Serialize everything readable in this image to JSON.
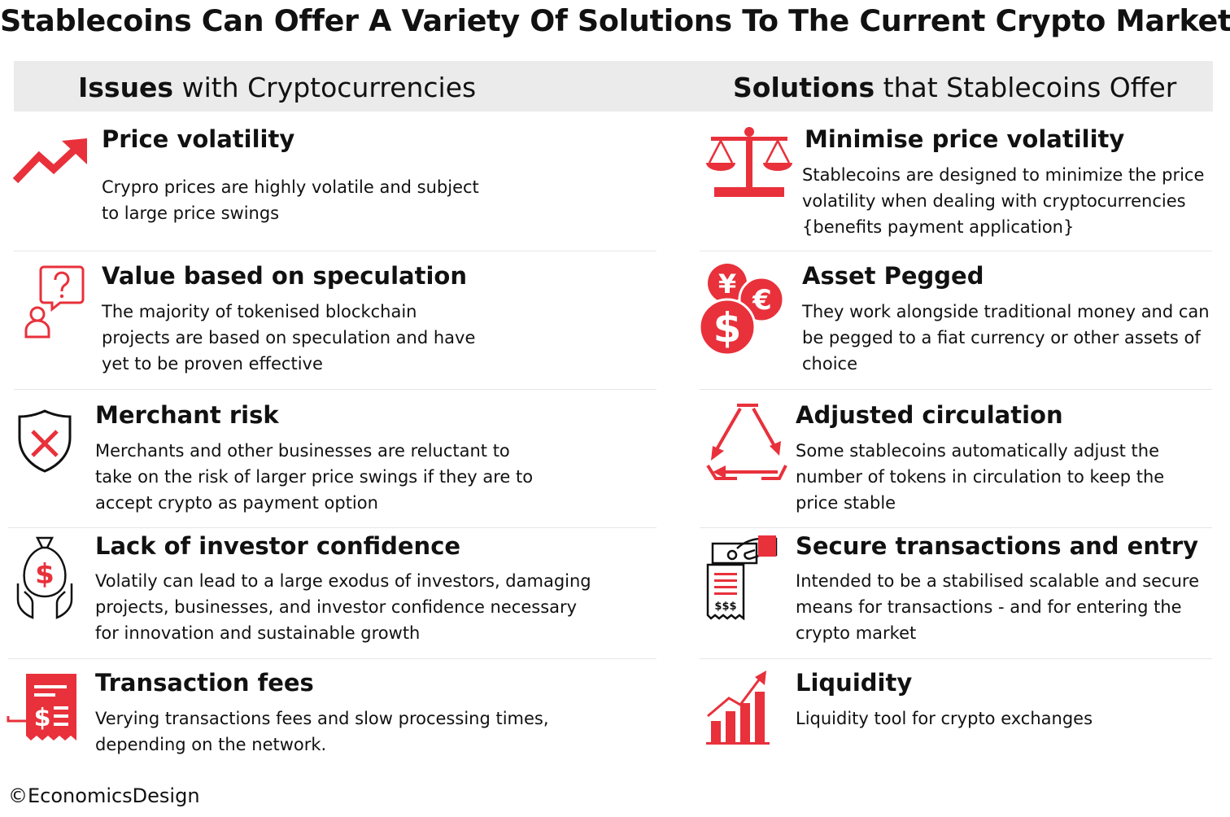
{
  "title": "Stablecoins Can Offer A Variety Of Solutions To The Current Crypto Market",
  "left_header": {
    "bold": "Issues",
    "rest": " with Cryptocurrencies"
  },
  "right_header": {
    "bold": "Solutions",
    "rest": " that Stablecoins Offer"
  },
  "accent_color": "#e8313b",
  "issues": [
    {
      "icon": "trend-up-arrow-icon",
      "title": "Price volatility",
      "desc": "Crypro prices are highly volatile and subject\nto large price swings"
    },
    {
      "icon": "question-person-icon",
      "title": "Value based on speculation",
      "desc": "The majority of tokenised blockchain\nprojects are based on speculation and have\nyet to be proven effective"
    },
    {
      "icon": "shield-x-icon",
      "title": "Merchant risk",
      "desc": "Merchants and other businesses are reluctant to\ntake on the risk of larger price swings if they are to\naccept crypto as payment option"
    },
    {
      "icon": "money-bag-hands-icon",
      "title": "Lack of investor confidence",
      "desc": "Volatily can lead to a large exodus of investors, damaging\nprojects, businesses, and investor confidence necessary\nfor innovation and sustainable growth"
    },
    {
      "icon": "receipt-dollar-icon",
      "title": "Transaction fees",
      "desc": "Verying transactions fees and slow processing times,\ndepending on the network."
    }
  ],
  "solutions": [
    {
      "icon": "balance-scale-icon",
      "title": "Minimise price volatility",
      "desc": "Stablecoins are designed to minimize the price\nvolatility when dealing with cryptocurrencies\n{benefits payment application}"
    },
    {
      "icon": "currency-coins-icon",
      "title": "Asset Pegged",
      "desc": "They work alongside traditional money and can\nbe pegged to a fiat currency or other assets of\nchoice",
      "coin_symbols": [
        "¥",
        "€",
        "$"
      ]
    },
    {
      "icon": "recycle-arrows-icon",
      "title": "Adjusted circulation",
      "desc": "Some stablecoins automatically adjust the\nnumber of tokens in circulation to keep the\nprice stable"
    },
    {
      "icon": "payment-receipt-icon",
      "title": "Secure transactions and entry",
      "desc": "Intended to be a stabilised scalable and secure\nmeans for transactions - and for entering the\ncrypto market",
      "receipt_text": "$$$"
    },
    {
      "icon": "bar-chart-growth-icon",
      "title": "Liquidity",
      "desc": "Liquidity tool for crypto exchanges"
    }
  ],
  "footer": "©EconomicsDesign"
}
